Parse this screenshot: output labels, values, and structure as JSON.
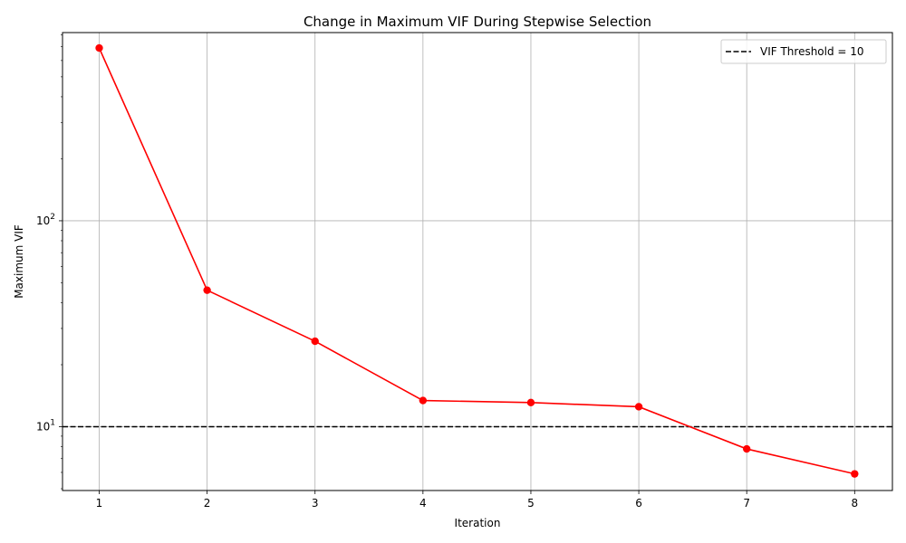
{
  "chart_data": {
    "type": "line",
    "title": "Change in Maximum VIF During Stepwise Selection",
    "xlabel": "Iteration",
    "ylabel": "Maximum VIF",
    "x": [
      1,
      2,
      3,
      4,
      5,
      6,
      7,
      8
    ],
    "x_ticks": [
      "1",
      "2",
      "3",
      "4",
      "5",
      "6",
      "7",
      "8"
    ],
    "xlim": [
      0.66,
      8.35
    ],
    "yscale": "log",
    "ylim": [
      4.9,
      820
    ],
    "y_ticks": [
      {
        "value": 10,
        "base": "10",
        "exp": "1"
      },
      {
        "value": 100,
        "base": "10",
        "exp": "2"
      }
    ],
    "grid": true,
    "series": [
      {
        "values": [
          690,
          46,
          26,
          13.4,
          13.1,
          12.5,
          7.8,
          5.9
        ],
        "color": "#ff0000",
        "marker": "circle"
      }
    ],
    "reference_lines": [
      {
        "name": "VIF Threshold = 10",
        "value": 10,
        "orientation": "horizontal",
        "color": "#000000",
        "style": "dashed"
      }
    ],
    "legend": {
      "position": "top-right",
      "entries": [
        "VIF Threshold = 10"
      ]
    }
  }
}
